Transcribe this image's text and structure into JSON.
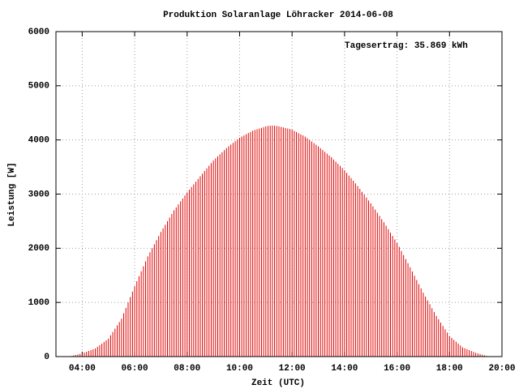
{
  "chart_data": {
    "type": "impulses",
    "title": "Produktion Solaranlage Löhracker 2014-06-08",
    "xlabel": "Zeit (UTC)",
    "ylabel": "Leistung [W]",
    "annotation": "Tagesertrag: 35.869 kWh",
    "color": "#e00000",
    "grid": true,
    "xlim": [
      180,
      1200
    ],
    "ylim": [
      0,
      6000
    ],
    "xticks": [
      {
        "value": 240,
        "label": "04:00"
      },
      {
        "value": 360,
        "label": "06:00"
      },
      {
        "value": 480,
        "label": "08:00"
      },
      {
        "value": 600,
        "label": "10:00"
      },
      {
        "value": 720,
        "label": "12:00"
      },
      {
        "value": 840,
        "label": "14:00"
      },
      {
        "value": 960,
        "label": "16:00"
      },
      {
        "value": 1080,
        "label": "18:00"
      },
      {
        "value": 1200,
        "label": "20:00"
      }
    ],
    "yticks": [
      0,
      1000,
      2000,
      3000,
      4000,
      5000,
      6000
    ],
    "x": [
      215,
      220,
      225,
      230,
      235,
      240,
      245,
      250,
      255,
      260,
      265,
      270,
      275,
      280,
      285,
      290,
      295,
      300,
      305,
      310,
      315,
      320,
      325,
      330,
      335,
      340,
      345,
      350,
      355,
      360,
      365,
      370,
      375,
      380,
      385,
      390,
      395,
      400,
      405,
      410,
      415,
      420,
      425,
      430,
      435,
      440,
      445,
      450,
      455,
      460,
      465,
      470,
      475,
      480,
      485,
      490,
      495,
      500,
      505,
      510,
      515,
      520,
      525,
      530,
      535,
      540,
      545,
      550,
      555,
      560,
      565,
      570,
      575,
      580,
      585,
      590,
      595,
      600,
      605,
      610,
      615,
      620,
      625,
      630,
      635,
      640,
      645,
      650,
      655,
      660,
      665,
      670,
      675,
      680,
      685,
      690,
      695,
      700,
      705,
      710,
      715,
      720,
      725,
      730,
      735,
      740,
      745,
      750,
      755,
      760,
      765,
      770,
      775,
      780,
      785,
      790,
      795,
      800,
      805,
      810,
      815,
      820,
      825,
      830,
      835,
      840,
      845,
      850,
      855,
      860,
      865,
      870,
      875,
      880,
      885,
      890,
      895,
      900,
      905,
      910,
      915,
      920,
      925,
      930,
      935,
      940,
      945,
      950,
      955,
      960,
      965,
      970,
      975,
      980,
      985,
      990,
      995,
      1000,
      1005,
      1010,
      1015,
      1020,
      1025,
      1030,
      1035,
      1040,
      1045,
      1050,
      1055,
      1060,
      1065,
      1070,
      1075,
      1080,
      1085,
      1090,
      1095,
      1100,
      1105,
      1110,
      1115,
      1120,
      1125,
      1130,
      1135,
      1140,
      1145,
      1150,
      1155,
      1160,
      1165
    ],
    "values": [
      10,
      20,
      30,
      40,
      50,
      60,
      75,
      90,
      105,
      120,
      135,
      150,
      180,
      210,
      240,
      270,
      300,
      330,
      392,
      453,
      515,
      577,
      638,
      700,
      800,
      900,
      1000,
      1100,
      1200,
      1300,
      1392,
      1483,
      1575,
      1667,
      1758,
      1850,
      1925,
      2000,
      2075,
      2150,
      2225,
      2300,
      2367,
      2433,
      2500,
      2567,
      2633,
      2700,
      2755,
      2810,
      2865,
      2920,
      2975,
      3030,
      3080,
      3130,
      3180,
      3230,
      3280,
      3330,
      3378,
      3427,
      3475,
      3523,
      3572,
      3620,
      3658,
      3697,
      3735,
      3773,
      3812,
      3850,
      3882,
      3913,
      3945,
      3977,
      4008,
      4040,
      4062,
      4083,
      4105,
      4127,
      4148,
      4170,
      4183,
      4197,
      4210,
      4223,
      4237,
      4250,
      4258,
      4263,
      4265,
      4263,
      4258,
      4250,
      4240,
      4230,
      4220,
      4210,
      4200,
      4190,
      4168,
      4147,
      4125,
      4103,
      4082,
      4060,
      4030,
      4000,
      3970,
      3940,
      3910,
      3880,
      3847,
      3813,
      3780,
      3747,
      3713,
      3680,
      3640,
      3600,
      3560,
      3520,
      3480,
      3440,
      3392,
      3343,
      3295,
      3247,
      3198,
      3150,
      3097,
      3043,
      2990,
      2937,
      2883,
      2830,
      2772,
      2713,
      2655,
      2597,
      2538,
      2480,
      2417,
      2353,
      2290,
      2227,
      2163,
      2100,
      2025,
      1950,
      1875,
      1800,
      1725,
      1650,
      1572,
      1493,
      1415,
      1337,
      1258,
      1180,
      1108,
      1037,
      965,
      893,
      822,
      750,
      688,
      627,
      565,
      503,
      442,
      380,
      345,
      310,
      275,
      240,
      205,
      170,
      153,
      137,
      120,
      103,
      87,
      70,
      58,
      47,
      35,
      23,
      12
    ]
  }
}
